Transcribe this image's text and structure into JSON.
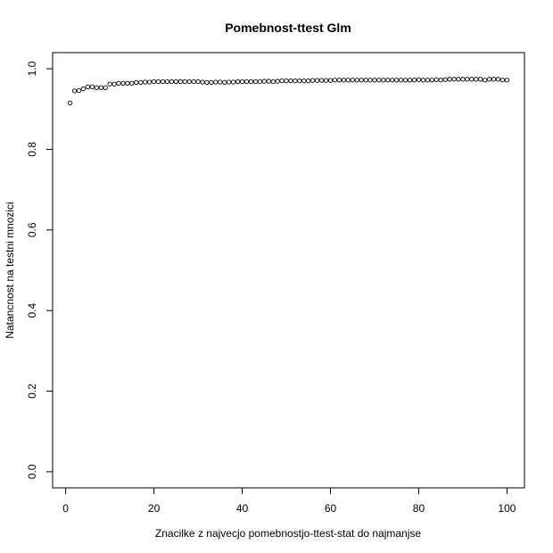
{
  "chart_data": {
    "type": "scatter",
    "title": "Pomebnost-ttest Glm",
    "xlabel": "Znacilke z najvecjo pomebnostjo-ttest-stat do najmanjse",
    "ylabel": "Natancnost na testni mnozici",
    "xlim": [
      -2.96,
      103.96
    ],
    "ylim": [
      -0.04,
      1.04
    ],
    "xticks": [
      0,
      20,
      40,
      60,
      80,
      100
    ],
    "xtick_labels": [
      "0",
      "20",
      "40",
      "60",
      "80",
      "100"
    ],
    "yticks": [
      0.0,
      0.2,
      0.4,
      0.6,
      0.8,
      1.0
    ],
    "ytick_labels": [
      "0.0",
      "0.2",
      "0.4",
      "0.6",
      "0.8",
      "1.0"
    ],
    "grid": false,
    "marker": "open-circle",
    "series": [
      {
        "x": [
          1,
          2,
          3,
          4,
          5,
          6,
          7,
          8,
          9,
          10,
          11,
          12,
          13,
          14,
          15,
          16,
          17,
          18,
          19,
          20,
          21,
          22,
          23,
          24,
          25,
          26,
          27,
          28,
          29,
          30,
          31,
          32,
          33,
          34,
          35,
          36,
          37,
          38,
          39,
          40,
          41,
          42,
          43,
          44,
          45,
          46,
          47,
          48,
          49,
          50,
          51,
          52,
          53,
          54,
          55,
          56,
          57,
          58,
          59,
          60,
          61,
          62,
          63,
          64,
          65,
          66,
          67,
          68,
          69,
          70,
          71,
          72,
          73,
          74,
          75,
          76,
          77,
          78,
          79,
          80,
          81,
          82,
          83,
          84,
          85,
          86,
          87,
          88,
          89,
          90,
          91,
          92,
          93,
          94,
          95,
          96,
          97,
          98,
          99,
          100
        ],
        "y": [
          0.915,
          0.945,
          0.946,
          0.95,
          0.955,
          0.955,
          0.953,
          0.953,
          0.953,
          0.962,
          0.962,
          0.964,
          0.964,
          0.964,
          0.964,
          0.966,
          0.966,
          0.967,
          0.967,
          0.968,
          0.968,
          0.968,
          0.968,
          0.968,
          0.968,
          0.968,
          0.968,
          0.968,
          0.968,
          0.968,
          0.967,
          0.966,
          0.966,
          0.967,
          0.967,
          0.966,
          0.967,
          0.967,
          0.968,
          0.968,
          0.968,
          0.968,
          0.968,
          0.968,
          0.969,
          0.969,
          0.968,
          0.969,
          0.97,
          0.97,
          0.97,
          0.97,
          0.97,
          0.97,
          0.97,
          0.971,
          0.971,
          0.971,
          0.971,
          0.971,
          0.972,
          0.972,
          0.972,
          0.972,
          0.972,
          0.972,
          0.972,
          0.972,
          0.972,
          0.972,
          0.972,
          0.972,
          0.972,
          0.972,
          0.972,
          0.972,
          0.972,
          0.972,
          0.972,
          0.973,
          0.972,
          0.972,
          0.972,
          0.973,
          0.972,
          0.973,
          0.974,
          0.974,
          0.974,
          0.974,
          0.974,
          0.974,
          0.974,
          0.974,
          0.972,
          0.974,
          0.974,
          0.974,
          0.972,
          0.972
        ]
      }
    ]
  }
}
